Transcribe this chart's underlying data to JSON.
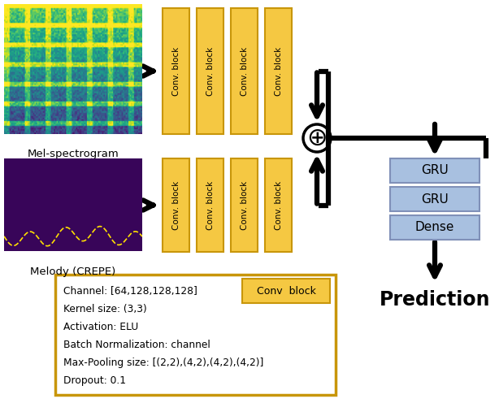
{
  "figsize": [
    6.14,
    4.96
  ],
  "dpi": 100,
  "bg_color": "#ffffff",
  "mel_label": "Mel-spectrogram",
  "melody_label": "Melody (CREPE)",
  "conv_block_color": "#F5C842",
  "conv_block_border": "#C8960A",
  "gru_color": "#A8C0E0",
  "gru_border": "#8090B8",
  "note_box_border": "#C8960A",
  "note_lines": [
    "Channel: [64,128,128,128]",
    "Kernel size: (3,3)",
    "Activation: ELU",
    "Batch Normalization: channel",
    "Max-Pooling size: [(2,2),(4,2),(4,2),(4,2)]",
    "Dropout: 0.1"
  ],
  "conv_block_label": "Conv  block",
  "gru_labels": [
    "GRU",
    "GRU",
    "Dense"
  ],
  "prediction_label": "Prediction",
  "lw_arrow": 4.5,
  "lw_circle": 2.5
}
